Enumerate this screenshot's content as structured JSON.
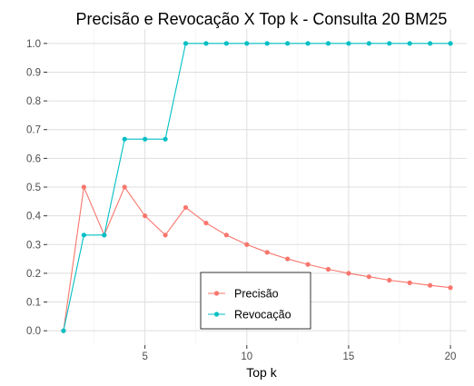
{
  "chart_data": {
    "type": "line",
    "title": "Precisão e Revocação X Top k - Consulta 20 BM25",
    "xlabel": "Top k",
    "ylabel": "",
    "x": [
      1,
      2,
      3,
      4,
      5,
      6,
      7,
      8,
      9,
      10,
      11,
      12,
      13,
      14,
      15,
      16,
      17,
      18,
      19,
      20
    ],
    "xlim": [
      0.2,
      20.8
    ],
    "ylim": [
      -0.05,
      1.05
    ],
    "x_ticks": [
      5,
      10,
      15,
      20
    ],
    "y_ticks": [
      0.0,
      0.1,
      0.2,
      0.3,
      0.4,
      0.5,
      0.6,
      0.7,
      0.8,
      0.9,
      1.0
    ],
    "grid": true,
    "legend_position": "center-bottom",
    "series": [
      {
        "name": "Precisão",
        "color": "#F8766D",
        "values": [
          0.0,
          0.5,
          0.333,
          0.5,
          0.4,
          0.333,
          0.429,
          0.375,
          0.333,
          0.3,
          0.273,
          0.25,
          0.231,
          0.214,
          0.2,
          0.188,
          0.176,
          0.167,
          0.158,
          0.15
        ]
      },
      {
        "name": "Revocação",
        "color": "#00BFC4",
        "values": [
          0.0,
          0.333,
          0.333,
          0.667,
          0.667,
          0.667,
          1.0,
          1.0,
          1.0,
          1.0,
          1.0,
          1.0,
          1.0,
          1.0,
          1.0,
          1.0,
          1.0,
          1.0,
          1.0,
          1.0
        ]
      }
    ]
  }
}
